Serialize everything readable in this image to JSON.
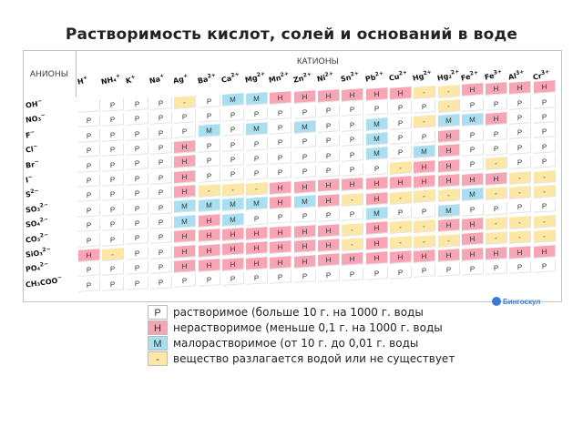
{
  "title": "Растворимость кислот, солей и оснований в воде",
  "headers": {
    "anions": "АНИОНЫ",
    "cations": "КАТИОНЫ"
  },
  "cations": [
    {
      "sym": "H",
      "ch": "+"
    },
    {
      "sym": "NH₄",
      "ch": "+"
    },
    {
      "sym": "K",
      "ch": "+"
    },
    {
      "sym": "Na",
      "ch": "+"
    },
    {
      "sym": "Ag",
      "ch": "+"
    },
    {
      "sym": "Ba",
      "ch": "2+"
    },
    {
      "sym": "Ca",
      "ch": "2+"
    },
    {
      "sym": "Mg",
      "ch": "2+"
    },
    {
      "sym": "Mn",
      "ch": "2+"
    },
    {
      "sym": "Zn",
      "ch": "2+"
    },
    {
      "sym": "Ni",
      "ch": "2+"
    },
    {
      "sym": "Sn",
      "ch": "2+"
    },
    {
      "sym": "Pb",
      "ch": "2+"
    },
    {
      "sym": "Cu",
      "ch": "2+"
    },
    {
      "sym": "Hg",
      "ch": "2+"
    },
    {
      "sym": "Hg₂",
      "ch": "2+"
    },
    {
      "sym": "Fe",
      "ch": "2+"
    },
    {
      "sym": "Fe",
      "ch": "3+"
    },
    {
      "sym": "Al",
      "ch": "3+"
    },
    {
      "sym": "Cr",
      "ch": "3+"
    }
  ],
  "anions": [
    {
      "sym": "OH",
      "ch": "−"
    },
    {
      "sym": "NO₃",
      "ch": "−"
    },
    {
      "sym": "F",
      "ch": "−"
    },
    {
      "sym": "Cl",
      "ch": "−"
    },
    {
      "sym": "Br",
      "ch": "−"
    },
    {
      "sym": "I",
      "ch": "−"
    },
    {
      "sym": "S",
      "ch": "2−"
    },
    {
      "sym": "SO₃",
      "ch": "2−"
    },
    {
      "sym": "SO₄",
      "ch": "2−"
    },
    {
      "sym": "CO₃",
      "ch": "2−"
    },
    {
      "sym": "SiO₃",
      "ch": "2−"
    },
    {
      "sym": "PO₄",
      "ch": "2−"
    },
    {
      "sym": "CH₃COO",
      "ch": "−"
    }
  ],
  "rows": [
    [
      "",
      "P",
      "P",
      "P",
      "-",
      "P",
      "M",
      "M",
      "H",
      "H",
      "H",
      "H",
      "H",
      "H",
      "-",
      "-",
      "H",
      "H",
      "H",
      "H"
    ],
    [
      "P",
      "P",
      "P",
      "P",
      "P",
      "P",
      "P",
      "P",
      "P",
      "P",
      "P",
      "P",
      "P",
      "P",
      "P",
      "-",
      "P",
      "P",
      "P",
      "P"
    ],
    [
      "P",
      "P",
      "P",
      "P",
      "P",
      "M",
      "P",
      "M",
      "P",
      "M",
      "P",
      "P",
      "M",
      "P",
      "-",
      "M",
      "M",
      "H",
      "P",
      "P"
    ],
    [
      "P",
      "P",
      "P",
      "P",
      "H",
      "P",
      "P",
      "P",
      "P",
      "P",
      "P",
      "P",
      "M",
      "P",
      "P",
      "H",
      "P",
      "P",
      "P",
      "P"
    ],
    [
      "P",
      "P",
      "P",
      "P",
      "H",
      "P",
      "P",
      "P",
      "P",
      "P",
      "P",
      "P",
      "M",
      "P",
      "M",
      "H",
      "P",
      "P",
      "P",
      "P"
    ],
    [
      "P",
      "P",
      "P",
      "P",
      "H",
      "P",
      "P",
      "P",
      "P",
      "P",
      "P",
      "P",
      "P",
      "-",
      "H",
      "H",
      "P",
      "-",
      "P",
      "P"
    ],
    [
      "P",
      "P",
      "P",
      "P",
      "H",
      "-",
      "-",
      "-",
      "H",
      "H",
      "H",
      "H",
      "H",
      "H",
      "H",
      "H",
      "H",
      "H",
      "-",
      "-"
    ],
    [
      "P",
      "P",
      "P",
      "P",
      "M",
      "M",
      "M",
      "M",
      "H",
      "M",
      "H",
      "-",
      "H",
      "-",
      "-",
      "-",
      "M",
      "-",
      "-",
      "-"
    ],
    [
      "P",
      "P",
      "P",
      "P",
      "M",
      "H",
      "M",
      "P",
      "P",
      "P",
      "P",
      "P",
      "M",
      "P",
      "P",
      "M",
      "P",
      "P",
      "P",
      "P"
    ],
    [
      "P",
      "P",
      "P",
      "P",
      "H",
      "H",
      "H",
      "H",
      "H",
      "H",
      "H",
      "-",
      "H",
      "-",
      "-",
      "H",
      "H",
      "-",
      "-",
      "-"
    ],
    [
      "H",
      "-",
      "P",
      "P",
      "H",
      "H",
      "H",
      "H",
      "H",
      "H",
      "H",
      "-",
      "H",
      "-",
      "-",
      "-",
      "H",
      "-",
      "-",
      "-"
    ],
    [
      "P",
      "P",
      "P",
      "P",
      "H",
      "H",
      "H",
      "H",
      "H",
      "H",
      "H",
      "H",
      "H",
      "H",
      "H",
      "H",
      "H",
      "H",
      "H",
      "H"
    ],
    [
      "P",
      "P",
      "P",
      "P",
      "P",
      "P",
      "P",
      "P",
      "P",
      "P",
      "P",
      "P",
      "P",
      "P",
      "P",
      "P",
      "P",
      "P",
      "P",
      "P"
    ]
  ],
  "legend": [
    {
      "code": "P",
      "symbol": "Р",
      "text": "растворимое (больше 10 г. на 1000 г. воды"
    },
    {
      "code": "H",
      "symbol": "Н",
      "text": "нерастворимое (меньше 0,1 г. на 1000 г. воды"
    },
    {
      "code": "M",
      "symbol": "М",
      "text": "малорастворимое (от 10 г. до 0,01 г. воды"
    },
    {
      "code": "D",
      "symbol": "-",
      "text": "вещество разлагается водой или не существует"
    }
  ],
  "brand": "Бингоскул",
  "colors": {
    "insoluble": "#f7a4b5",
    "slightly": "#a9dff0",
    "decompose": "#fde7a6"
  }
}
